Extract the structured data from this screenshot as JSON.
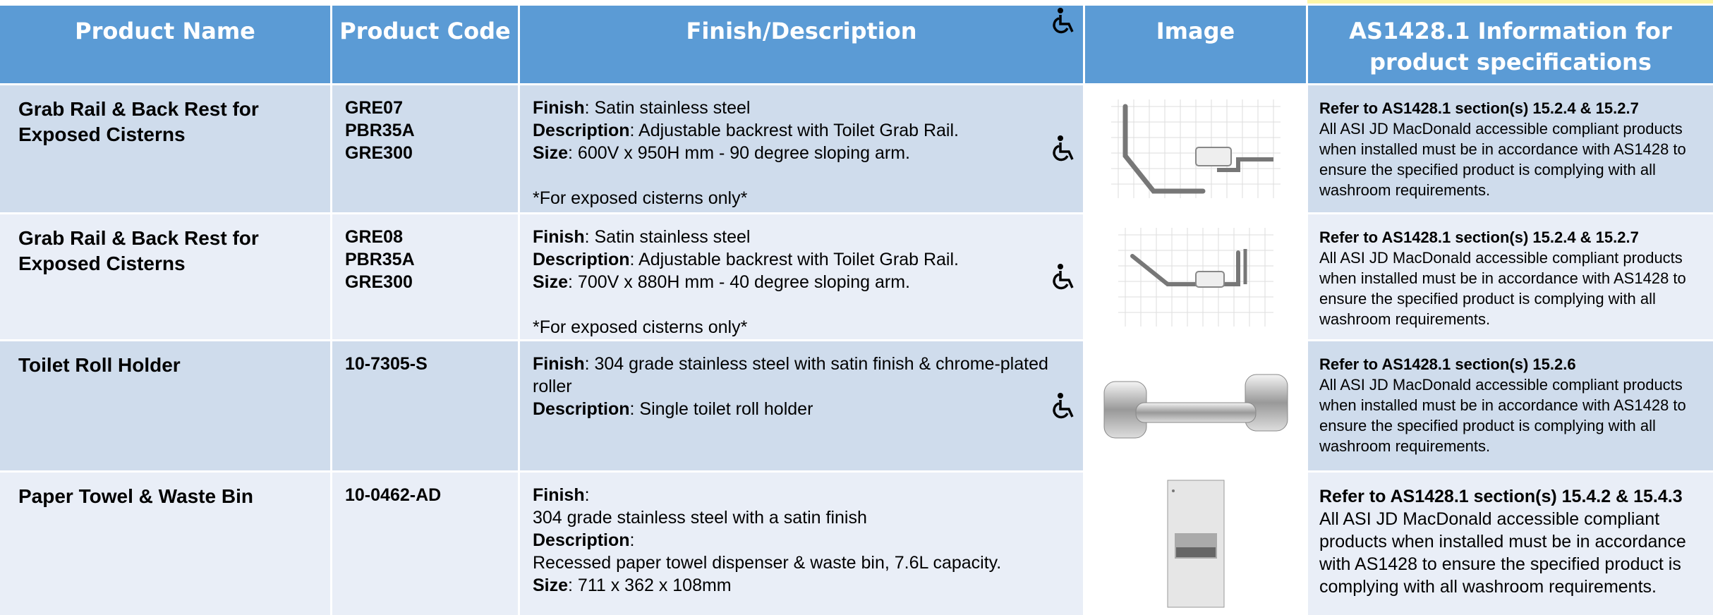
{
  "header": {
    "columns": [
      "Product Name",
      "Product Code",
      "Finish/Description",
      "Image",
      "AS1428.1 Information for product specifications"
    ]
  },
  "rows": [
    {
      "name": "Grab Rail & Back Rest for Exposed Cisterns",
      "codes": [
        "GRE07",
        "PBR35A",
        "GRE300"
      ],
      "details": [
        {
          "label": "Finish",
          "text": ": Satin stainless steel"
        },
        {
          "label": "Description",
          "text": ": Adjustable backrest with Toilet Grab Rail."
        },
        {
          "label": "Size",
          "text": ": 600V x 950H mm - 90 degree sloping arm."
        }
      ],
      "note": "*For exposed cisterns only*",
      "spec_title": "Refer to AS1428.1 section(s) 15.2.4 & 15.2.7",
      "spec_text": "All ASI JD MacDonald accessible compliant products when installed must be in accordance with AS1428 to ensure the specified product is complying with all washroom requirements."
    },
    {
      "name": "Grab Rail & Back Rest for Exposed Cisterns",
      "codes": [
        "GRE08",
        "PBR35A",
        "GRE300"
      ],
      "details": [
        {
          "label": "Finish",
          "text": ": Satin stainless steel"
        },
        {
          "label": "Description",
          "text": ": Adjustable backrest with Toilet Grab Rail."
        },
        {
          "label": "Size",
          "text": ": 700V x 880H mm - 40 degree sloping arm."
        }
      ],
      "note": "*For exposed cisterns only*",
      "spec_title": "Refer to AS1428.1 section(s) 15.2.4 & 15.2.7",
      "spec_text": "All ASI JD MacDonald accessible compliant products when installed must be in accordance with AS1428 to ensure the specified product is complying with all washroom requirements."
    },
    {
      "name": "Toilet Roll Holder",
      "codes": [
        "10-7305-S"
      ],
      "details": [
        {
          "label": "Finish",
          "text": ": 304 grade stainless steel with satin finish & chrome-plated roller"
        },
        {
          "label": "Description",
          "text": ": Single toilet roll holder"
        }
      ],
      "spec_title": "Refer to AS1428.1 section(s) 15.2.6",
      "spec_text": "All ASI JD MacDonald accessible compliant products when installed must be in accordance with AS1428 to ensure the specified product is complying with all washroom requirements."
    },
    {
      "name": "Paper Towel & Waste Bin",
      "codes": [
        "10-0462-AD"
      ],
      "details": [
        {
          "label": "Finish",
          "text": ":"
        },
        {
          "text": "304 grade stainless steel with a satin finish"
        },
        {
          "label": "Description",
          "text": ":"
        },
        {
          "text": "Recessed paper towel dispenser & waste bin, 7.6L capacity."
        },
        {
          "label": "Size",
          "text": ": 711 x 362 x 108mm"
        }
      ],
      "spec_title": "Refer to AS1428.1 section(s) 15.4.2 & 15.4.3",
      "spec_text": "All ASI JD MacDonald accessible compliant products when installed must be in accordance with AS1428 to ensure the specified product is complying with all washroom requirements."
    }
  ]
}
